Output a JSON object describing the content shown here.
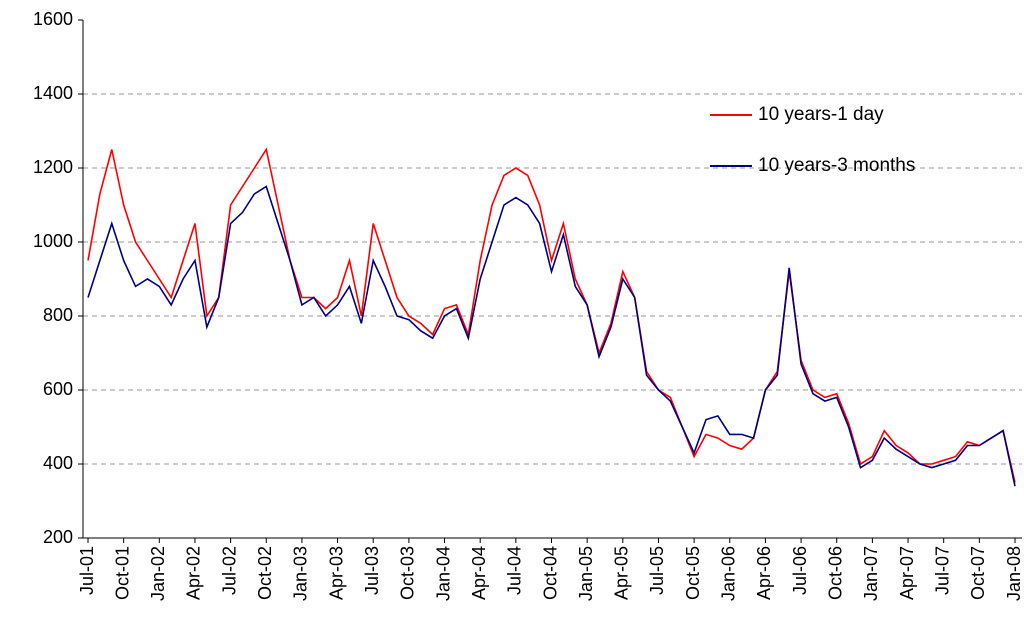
{
  "chart_data": {
    "type": "line",
    "categories": [
      "Jul-01",
      null,
      null,
      "Oct-01",
      null,
      null,
      "Jan-02",
      null,
      null,
      "Apr-02",
      null,
      null,
      "Jul-02",
      null,
      null,
      "Oct-02",
      null,
      null,
      "Jan-03",
      null,
      null,
      "Apr-03",
      null,
      null,
      "Jul-03",
      null,
      null,
      "Oct-03",
      null,
      null,
      "Jan-04",
      null,
      null,
      "Apr-04",
      null,
      null,
      "Jul-04",
      null,
      null,
      "Oct-04",
      null,
      null,
      "Jan-05",
      null,
      null,
      "Apr-05",
      null,
      null,
      "Jul-05",
      null,
      null,
      "Oct-05",
      null,
      null,
      "Jan-06",
      null,
      null,
      "Apr-06",
      null,
      null,
      "Jul-06",
      null,
      null,
      "Oct-06",
      null,
      null,
      "Jan-07",
      null,
      null,
      "Apr-07",
      null,
      null,
      "Jul-07",
      null,
      null,
      "Oct-07",
      null,
      null,
      "Jan-08"
    ],
    "series": [
      {
        "name": "10 years-1 day",
        "color": "#ff0000",
        "values": [
          950,
          1130,
          1250,
          1100,
          1000,
          950,
          900,
          850,
          950,
          1050,
          800,
          850,
          1100,
          1150,
          1200,
          1250,
          1100,
          950,
          850,
          850,
          820,
          850,
          950,
          800,
          1050,
          950,
          850,
          800,
          780,
          750,
          820,
          830,
          750,
          950,
          1100,
          1180,
          1200,
          1180,
          1100,
          950,
          1050,
          900,
          830,
          700,
          780,
          920,
          850,
          650,
          600,
          580,
          500,
          420,
          480,
          470,
          450,
          440,
          470,
          600,
          650,
          920,
          680,
          600,
          580,
          590,
          510,
          400,
          420,
          490,
          450,
          430,
          400,
          400,
          410,
          420,
          460,
          450,
          470,
          490,
          350
        ]
      },
      {
        "name": "10 years-3 months",
        "color": "#000080",
        "values": [
          850,
          950,
          1050,
          950,
          880,
          900,
          880,
          830,
          900,
          950,
          770,
          850,
          1050,
          1080,
          1130,
          1150,
          1050,
          950,
          830,
          850,
          800,
          830,
          880,
          780,
          950,
          880,
          800,
          790,
          760,
          740,
          800,
          820,
          740,
          900,
          1000,
          1100,
          1120,
          1100,
          1050,
          920,
          1020,
          880,
          830,
          690,
          770,
          900,
          850,
          640,
          600,
          570,
          500,
          430,
          520,
          530,
          480,
          480,
          470,
          600,
          640,
          930,
          670,
          590,
          570,
          580,
          500,
          390,
          410,
          470,
          440,
          420,
          400,
          390,
          400,
          410,
          450,
          450,
          470,
          490,
          340
        ]
      }
    ],
    "ylim": [
      200,
      1600
    ],
    "yticks": [
      200,
      400,
      600,
      800,
      1000,
      1200,
      1400,
      1600
    ],
    "grid": true
  }
}
